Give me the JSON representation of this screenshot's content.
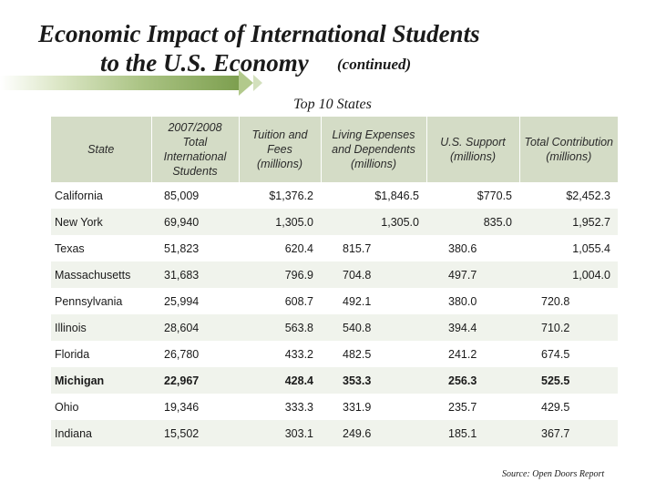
{
  "title_line1": "Economic Impact of International Students",
  "title_line2": "to the U.S. Economy",
  "title_note": "(continued)",
  "subtitle": "Top 10 States",
  "headers": [
    "State",
    "2007/2008 Total International Students",
    "Tuition and Fees (millions)",
    "Living Expenses and Dependents (millions)",
    "U.S. Support (millions)",
    "Total Contribution (millions)"
  ],
  "rows": [
    {
      "state": "California",
      "students": "85,009",
      "tuition": "$1,376.2",
      "living": "$1,846.5",
      "support": "$770.5",
      "total": "$2,452.3"
    },
    {
      "state": "New York",
      "students": "69,940",
      "tuition": "1,305.0",
      "living": "1,305.0",
      "support": "835.0",
      "total": "1,952.7"
    },
    {
      "state": "Texas",
      "students": "51,823",
      "tuition": "620.4",
      "living": "815.7",
      "support": "380.6",
      "total": "1,055.4"
    },
    {
      "state": "Massachusetts",
      "students": "31,683",
      "tuition": "796.9",
      "living": "704.8",
      "support": "497.7",
      "total": "1,004.0"
    },
    {
      "state": "Pennsylvania",
      "students": "25,994",
      "tuition": "608.7",
      "living": "492.1",
      "support": "380.0",
      "total": "720.8"
    },
    {
      "state": "Illinois",
      "students": "28,604",
      "tuition": "563.8",
      "living": "540.8",
      "support": "394.4",
      "total": "710.2"
    },
    {
      "state": "Florida",
      "students": "26,780",
      "tuition": "433.2",
      "living": "482.5",
      "support": "241.2",
      "total": "674.5"
    },
    {
      "state": "Michigan",
      "students": "22,967",
      "tuition": "428.4",
      "living": "353.3",
      "support": "256.3",
      "total": "525.5"
    },
    {
      "state": "Ohio",
      "students": "19,346",
      "tuition": "333.3",
      "living": "331.9",
      "support": "235.7",
      "total": "429.5"
    },
    {
      "state": "Indiana",
      "students": "15,502",
      "tuition": "303.1",
      "living": "249.6",
      "support": "185.1",
      "total": "367.7"
    }
  ],
  "source": "Source:  Open Doors Report"
}
